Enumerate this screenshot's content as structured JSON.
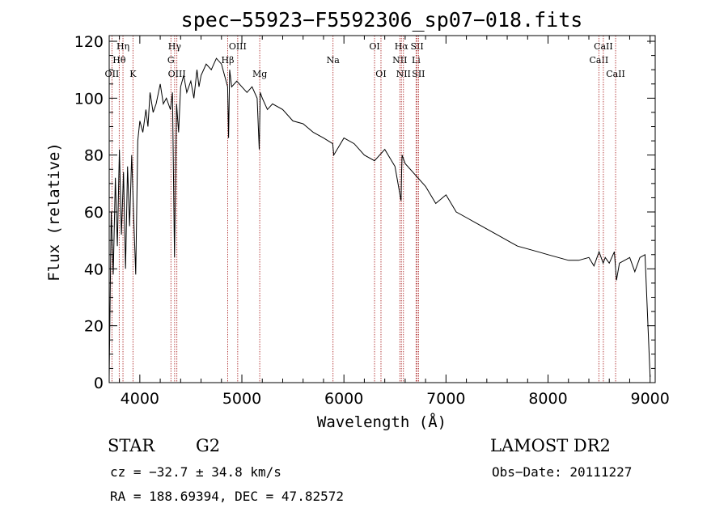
{
  "chart_data": {
    "type": "line",
    "title": "spec−55923−F5592306_sp07−018.fits",
    "xlabel": "Wavelength (Å)",
    "ylabel": "Flux (relative)",
    "xlim": [
      3700,
      9050
    ],
    "ylim": [
      0,
      122
    ],
    "xticks": [
      4000,
      5000,
      6000,
      7000,
      8000,
      9000
    ],
    "yticks": [
      0,
      20,
      40,
      60,
      80,
      100,
      120
    ],
    "series": [
      {
        "name": "flux",
        "x": [
          3700,
          3720,
          3740,
          3760,
          3780,
          3800,
          3820,
          3840,
          3860,
          3880,
          3900,
          3920,
          3940,
          3960,
          3980,
          4000,
          4030,
          4060,
          4080,
          4100,
          4130,
          4160,
          4200,
          4230,
          4260,
          4300,
          4320,
          4340,
          4360,
          4380,
          4400,
          4430,
          4460,
          4500,
          4530,
          4560,
          4580,
          4600,
          4650,
          4700,
          4750,
          4800,
          4830,
          4860,
          4870,
          4880,
          4900,
          4950,
          5000,
          5050,
          5100,
          5150,
          5170,
          5180,
          5200,
          5250,
          5300,
          5400,
          5500,
          5600,
          5700,
          5800,
          5890,
          5900,
          6000,
          6100,
          6200,
          6300,
          6400,
          6500,
          6560,
          6565,
          6570,
          6600,
          6700,
          6800,
          6900,
          7000,
          7100,
          7200,
          7300,
          7400,
          7500,
          7600,
          7700,
          7800,
          7900,
          8000,
          8100,
          8200,
          8300,
          8400,
          8450,
          8500,
          8540,
          8560,
          8600,
          8650,
          8670,
          8700,
          8800,
          8850,
          8900,
          8950,
          9000
        ],
        "y": [
          2,
          60,
          38,
          72,
          48,
          82,
          52,
          74,
          40,
          76,
          55,
          80,
          58,
          38,
          85,
          92,
          88,
          96,
          90,
          102,
          95,
          98,
          105,
          98,
          100,
          96,
          102,
          44,
          98,
          88,
          104,
          108,
          102,
          106,
          100,
          110,
          104,
          108,
          112,
          110,
          114,
          112,
          108,
          104,
          86,
          110,
          104,
          106,
          104,
          102,
          104,
          100,
          82,
          102,
          100,
          96,
          98,
          96,
          92,
          91,
          88,
          86,
          84,
          80,
          86,
          84,
          80,
          78,
          82,
          76,
          64,
          74,
          80,
          77,
          73,
          69,
          63,
          66,
          60,
          58,
          56,
          54,
          52,
          50,
          48,
          47,
          46,
          45,
          44,
          43,
          43,
          44,
          41,
          46,
          42,
          44,
          42,
          46,
          36,
          42,
          44,
          39,
          44,
          45,
          2
        ]
      }
    ],
    "lines": [
      {
        "w": 3727,
        "label": "OII",
        "row": 3
      },
      {
        "w": 3798,
        "label": "Hθ",
        "row": 2
      },
      {
        "w": 3835,
        "label": "Hη",
        "row": 1
      },
      {
        "w": 3933,
        "label": "K",
        "row": 3
      },
      {
        "w": 4305,
        "label": "G",
        "row": 2
      },
      {
        "w": 4341,
        "label": "Hγ",
        "row": 1
      },
      {
        "w": 4363,
        "label": "OIII",
        "row": 3
      },
      {
        "w": 4861,
        "label": "Hβ",
        "row": 2
      },
      {
        "w": 4959,
        "label": "OIII",
        "row": 1
      },
      {
        "w": 5175,
        "label": "Mg",
        "row": 3
      },
      {
        "w": 5893,
        "label": "Na",
        "row": 2
      },
      {
        "w": 6300,
        "label": "OI",
        "row": 1
      },
      {
        "w": 6363,
        "label": "OI",
        "row": 3
      },
      {
        "w": 6548,
        "label": "NII",
        "row": 2
      },
      {
        "w": 6563,
        "label": "Hα",
        "row": 1
      },
      {
        "w": 6583,
        "label": "NII",
        "row": 3
      },
      {
        "w": 6707,
        "label": "Li",
        "row": 2
      },
      {
        "w": 6717,
        "label": "SII",
        "row": 1
      },
      {
        "w": 6731,
        "label": "SII",
        "row": 3
      },
      {
        "w": 8498,
        "label": "CaII",
        "row": 2
      },
      {
        "w": 8542,
        "label": "CaII",
        "row": 1
      },
      {
        "w": 8662,
        "label": "CaII",
        "row": 3
      }
    ]
  },
  "info": {
    "class": "STAR",
    "subclass": "G2",
    "survey": "LAMOST DR2",
    "cz": "cz = −32.7 ± 34.8 km/s",
    "obs_date": "Obs−Date: 20111227",
    "radec": "RA = 188.69394, DEC =  47.82572"
  },
  "colors": {
    "line_marker": "#b03030",
    "ink": "#000000"
  }
}
